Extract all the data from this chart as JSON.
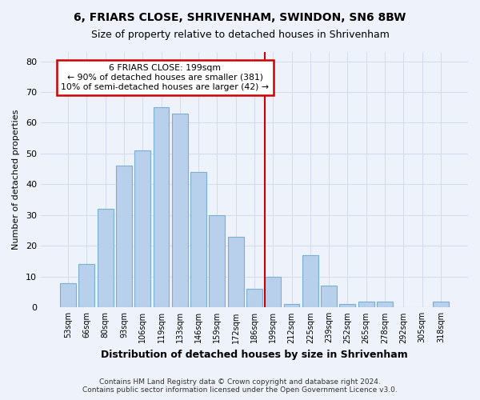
{
  "title": "6, FRIARS CLOSE, SHRIVENHAM, SWINDON, SN6 8BW",
  "subtitle": "Size of property relative to detached houses in Shrivenham",
  "xlabel": "Distribution of detached houses by size in Shrivenham",
  "ylabel": "Number of detached properties",
  "categories": [
    "53sqm",
    "66sqm",
    "80sqm",
    "93sqm",
    "106sqm",
    "119sqm",
    "133sqm",
    "146sqm",
    "159sqm",
    "172sqm",
    "186sqm",
    "199sqm",
    "212sqm",
    "225sqm",
    "239sqm",
    "252sqm",
    "265sqm",
    "278sqm",
    "292sqm",
    "305sqm",
    "318sqm"
  ],
  "values": [
    8,
    14,
    32,
    46,
    51,
    65,
    63,
    44,
    30,
    23,
    6,
    10,
    1,
    17,
    7,
    1,
    2,
    2,
    0,
    0,
    2
  ],
  "bar_color": "#b8d0eb",
  "bar_edge_color": "#7aafd4",
  "vline_index": 11,
  "vline_color": "#cc0000",
  "annotation_box_color": "#cc0000",
  "annotation_line1": "6 FRIARS CLOSE: 199sqm",
  "annotation_line2": "← 90% of detached houses are smaller (381)",
  "annotation_line3": "10% of semi-detached houses are larger (42) →",
  "background_color": "#eef2fa",
  "grid_color": "#d0d8ea",
  "ylim": [
    0,
    83
  ],
  "yticks": [
    0,
    10,
    20,
    30,
    40,
    50,
    60,
    70,
    80
  ],
  "footnote1": "Contains HM Land Registry data © Crown copyright and database right 2024.",
  "footnote2": "Contains public sector information licensed under the Open Government Licence v3.0."
}
